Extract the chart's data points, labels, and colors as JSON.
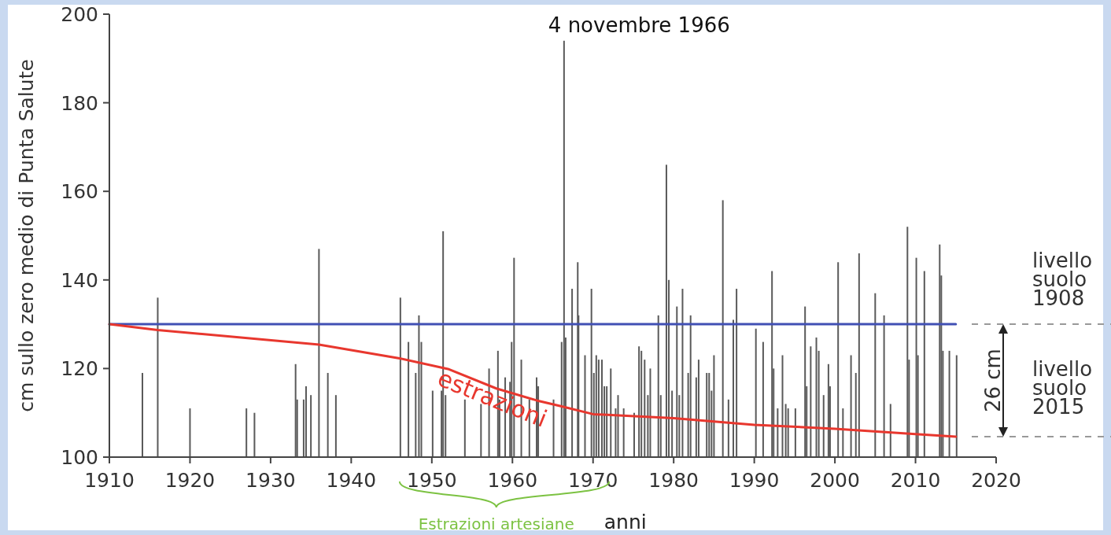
{
  "chart_data": {
    "type": "bar",
    "xlabel": "anni",
    "ylabel": "cm sullo zero medio di Punta Salute",
    "xlim": [
      1910,
      2020
    ],
    "xticks": [
      1910,
      1920,
      1930,
      1940,
      1950,
      1960,
      1970,
      1980,
      1990,
      2000,
      2010,
      2020
    ],
    "ylim": [
      100,
      200
    ],
    "yticks": [
      100,
      120,
      140,
      160,
      180,
      200
    ],
    "annotations": [
      {
        "text": "4 novembre 1966",
        "x": 1966.4,
        "y": 194.5
      },
      {
        "text": "estrazioni",
        "x": 1958,
        "y": 115.5
      },
      "livello suolo 1908",
      "26 cm",
      "livello suolo 2015",
      "Estrazioni artesiane"
    ],
    "series": [
      {
        "color": "#5a5a5a",
        "x": [
          1914.1,
          1916.0,
          1920.0,
          1927.0,
          1928.0,
          1933.1,
          1933.3,
          1934.1,
          1934.4,
          1935.0,
          1936.0,
          1937.1,
          1938.1,
          1946.1,
          1947.1,
          1948.0,
          1948.4,
          1948.7,
          1950.1,
          1951.2,
          1951.4,
          1951.7,
          1954.1,
          1956.1,
          1957.1,
          1958.2,
          1958.4,
          1959.1,
          1959.7,
          1959.9,
          1960.2,
          1961.1,
          1962.1,
          1963.0,
          1963.2,
          1965.1,
          1966.1,
          1966.4,
          1966.6,
          1967.4,
          1968.1,
          1968.2,
          1969.0,
          1969.8,
          1970.1,
          1970.4,
          1970.7,
          1971.1,
          1971.4,
          1971.7,
          1972.2,
          1972.8,
          1973.1,
          1973.8,
          1975.1,
          1975.7,
          1976.0,
          1976.4,
          1976.8,
          1977.1,
          1978.1,
          1978.4,
          1979.1,
          1979.4,
          1979.8,
          1980.4,
          1980.7,
          1981.1,
          1981.8,
          1982.1,
          1982.8,
          1983.1,
          1984.1,
          1984.4,
          1984.7,
          1985.0,
          1986.1,
          1986.8,
          1987.4,
          1987.8,
          1990.2,
          1991.1,
          1992.2,
          1992.4,
          1992.9,
          1993.5,
          1993.9,
          1994.2,
          1995.1,
          1996.3,
          1996.5,
          1997.0,
          1997.7,
          1998.0,
          1998.6,
          1999.2,
          1999.4,
          2000.4,
          2001.0,
          2002.0,
          2002.6,
          2003.0,
          2005.0,
          2006.1,
          2006.9,
          2009.0,
          2009.2,
          2010.1,
          2010.3,
          2011.1,
          2013.0,
          2013.2,
          2013.4,
          2014.2,
          2015.1
        ],
        "values": [
          119,
          136,
          111,
          111,
          110,
          121,
          113,
          113,
          116,
          114,
          147,
          119,
          114,
          136,
          126,
          119,
          132,
          126,
          115,
          115,
          151,
          114,
          113,
          112,
          120,
          124,
          113,
          118,
          117,
          126,
          145,
          122,
          113,
          118,
          116,
          113,
          126,
          194,
          127,
          138,
          144,
          132,
          123,
          138,
          119,
          123,
          122,
          122,
          116,
          116,
          120,
          111,
          114,
          111,
          110,
          125,
          124,
          122,
          114,
          120,
          132,
          114,
          166,
          140,
          115,
          134,
          114,
          138,
          119,
          132,
          118,
          122,
          119,
          119,
          115,
          123,
          158,
          113,
          131,
          138,
          129,
          126,
          142,
          120,
          111,
          123,
          112,
          111,
          111,
          134,
          116,
          125,
          127,
          124,
          114,
          121,
          116,
          144,
          111,
          123,
          119,
          146,
          137,
          132,
          112,
          152,
          122,
          145,
          123,
          142,
          148,
          141,
          124,
          124,
          123
        ]
      },
      {
        "type": "line",
        "color": "#4150b4",
        "x": [
          1910,
          2015
        ],
        "values": [
          130,
          130
        ]
      },
      {
        "type": "line",
        "color": "#e8372e",
        "x": [
          1910,
          1916,
          1936,
          1946,
          1952,
          1958,
          1963,
          1966,
          1970,
          1980,
          1990,
          2000,
          2010,
          2015
        ],
        "values": [
          130,
          128.7,
          125.4,
          122.3,
          119.9,
          115.5,
          112.8,
          111.5,
          109.7,
          108.8,
          107.3,
          106.4,
          105.2,
          104.6
        ]
      }
    ]
  }
}
